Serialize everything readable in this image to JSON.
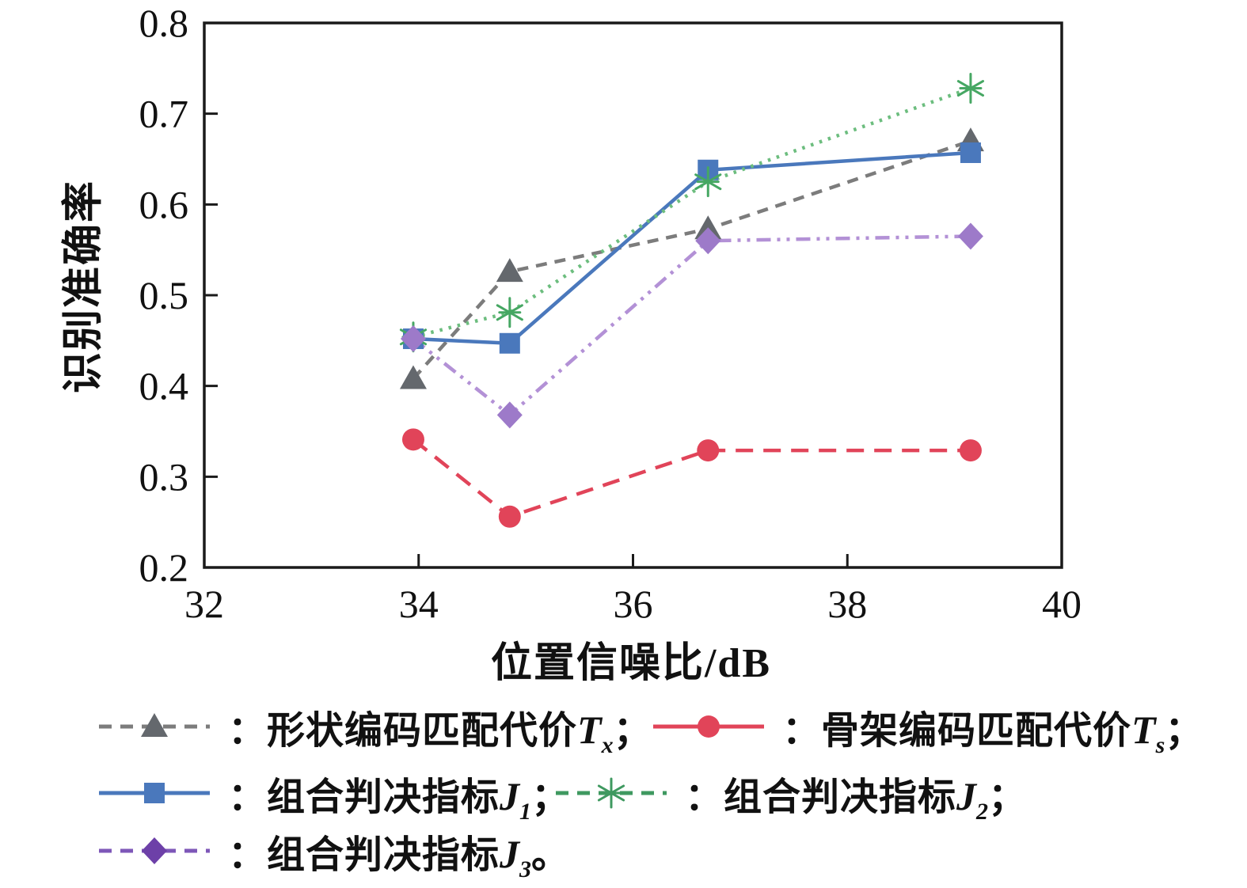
{
  "chart_data": {
    "type": "line",
    "title": "",
    "xlabel": "位置信噪比/dB",
    "ylabel": "识别准确率",
    "xlim": [
      32,
      40
    ],
    "ylim": [
      0.2,
      0.8
    ],
    "x_ticks": [
      32,
      34,
      36,
      38,
      40
    ],
    "y_ticks": [
      0.2,
      0.3,
      0.4,
      0.5,
      0.6,
      0.7,
      0.8
    ],
    "grid": false,
    "legend_position": "below-chart",
    "x": [
      33.95,
      34.85,
      36.7,
      39.15
    ],
    "series": [
      {
        "name": "形状编码匹配代价Tx",
        "values": [
          0.408,
          0.526,
          0.573,
          0.67
        ],
        "line_style": "dashed-sm",
        "marker": "triangle",
        "line_color": "#7c7c7c",
        "marker_color": "#64686d"
      },
      {
        "name": "骨架编码匹配代价Ts",
        "values": [
          0.341,
          0.256,
          0.329,
          0.329
        ],
        "line_style": "dashed-lg",
        "marker": "circle",
        "line_color": "#e14459",
        "marker_color": "#e14459"
      },
      {
        "name": "组合判决指标J1",
        "values": [
          0.452,
          0.447,
          0.638,
          0.657
        ],
        "line_style": "solid",
        "marker": "square",
        "line_color": "#4a78bc",
        "marker_color": "#4a78bc"
      },
      {
        "name": "组合判决指标J2",
        "values": [
          0.454,
          0.481,
          0.625,
          0.728
        ],
        "line_style": "dotted",
        "marker": "asterisk",
        "line_color": "#6cbd7e",
        "marker_color": "#46a763"
      },
      {
        "name": "组合判决指标J3",
        "values": [
          0.452,
          0.368,
          0.56,
          0.565
        ],
        "line_style": "dashdotdot",
        "marker": "diamond",
        "line_color": "#b391d6",
        "marker_color": "#9d7ac9"
      }
    ]
  },
  "legend": {
    "items": [
      {
        "pre": "：形状编码匹配代价",
        "var": "T",
        "sub": "x",
        "post": "；",
        "series": 0,
        "line": "dashed",
        "marker": "triangle",
        "line_color": "#7c7c7c",
        "marker_color": "#64686d"
      },
      {
        "pre": "：骨架编码匹配代价",
        "var": "T",
        "sub": "s",
        "post": "；",
        "series": 1,
        "line": "solid",
        "marker": "circle",
        "line_color": "#e14459",
        "marker_color": "#e14459"
      },
      {
        "pre": "：组合判决指标",
        "var": "J",
        "sub": "1",
        "post": "；",
        "series": 2,
        "line": "solid",
        "marker": "square",
        "line_color": "#4a78bc",
        "marker_color": "#4a78bc"
      },
      {
        "pre": "：组合判决指标",
        "var": "J",
        "sub": "2",
        "post": "；",
        "series": 3,
        "line": "dashed",
        "marker": "asterisk",
        "line_color": "#3f9960",
        "marker_color": "#3f9960"
      },
      {
        "pre": "：组合判决指标",
        "var": "J",
        "sub": "3",
        "post": "。",
        "series": 4,
        "line": "dashed",
        "marker": "diamond",
        "line_color": "#7e57b8",
        "marker_color": "#6d40a8"
      }
    ]
  }
}
